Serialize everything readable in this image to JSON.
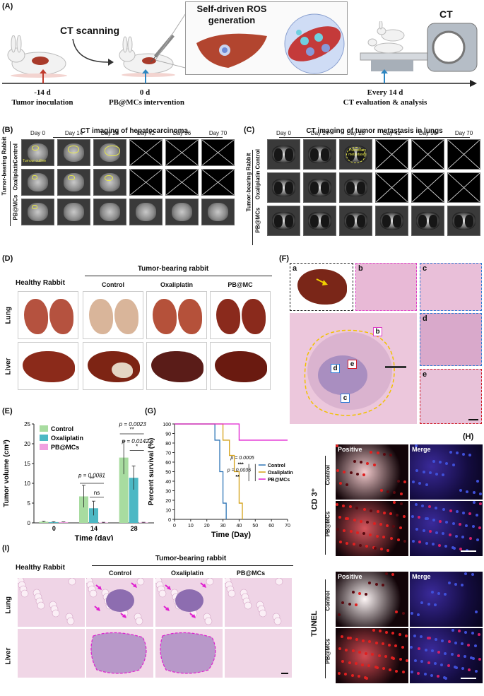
{
  "panel_labels": {
    "A": "(A)",
    "B": "(B)",
    "C": "(C)",
    "D": "(D)",
    "E": "(E)",
    "F": "(F)",
    "G": "(G)",
    "H": "(H)",
    "I": "(I)"
  },
  "panelA": {
    "ct_scanning": "CT scanning",
    "ros_title_1": "Self-driven ROS",
    "ros_title_2": "generation",
    "ct_label": "CT",
    "t1_day": "-14 d",
    "t1_event": "Tumor inoculation",
    "t2_day": "0 d",
    "t2_event": "PB@MCs intervention",
    "t3_day": "Every 14 d",
    "t3_event": "CT evaluation & analysis",
    "colors": {
      "red_arrow": "#c0392b",
      "blue_arrow": "#2e86c1"
    }
  },
  "panelB": {
    "title": "CT imaging of hepatocarcinoma",
    "days": [
      "Day 0",
      "Day 14",
      "Day 28",
      "Day 42",
      "Day 56",
      "Day 70"
    ],
    "group_label": "Tumor-bearing Rabbit",
    "rows": [
      "Control",
      "Oxaliplatin",
      "PB@MCs"
    ],
    "annotation": "Tumour outline"
  },
  "panelC": {
    "title": "CT imaging of tumor metastasis in lungs",
    "days": [
      "Day 0",
      "Day 14",
      "Day 28",
      "Day 42",
      "Day 56",
      "Day 70"
    ],
    "group_label": "Tumor-bearing Rabbit",
    "rows": [
      "Control",
      "Oxaliplatin",
      "PB@MCs"
    ],
    "annotation": "Pulmonary metastases"
  },
  "panelD": {
    "healthy": "Healthy Rabbit",
    "tumor": "Tumor-bearing rabbit",
    "groups": [
      "Control",
      "Oxaliplatin",
      "PB@MC"
    ],
    "rows": [
      "Lung",
      "Liver"
    ]
  },
  "panelF": {
    "subs": [
      "a",
      "b",
      "c",
      "d",
      "e"
    ],
    "colors": {
      "a": "#222222",
      "b": "#e040c8",
      "c": "#2e7bd6",
      "d": "#2e7bd6",
      "e": "#d0202a",
      "outline": "#f2c100"
    }
  },
  "panelE": {
    "chart_data": {
      "type": "bar",
      "title": "",
      "xlabel": "Time (day)",
      "ylabel": "Tumor volume (cm³)",
      "categories": [
        "0",
        "14",
        "28"
      ],
      "ylim": [
        0,
        25
      ],
      "yticks": [
        0,
        5,
        10,
        15,
        20,
        25
      ],
      "series": [
        {
          "name": "Control",
          "color": "#a8dca0",
          "values": [
            0.3,
            6.7,
            16.5
          ],
          "errors": [
            0.1,
            2.8,
            4.2
          ]
        },
        {
          "name": "Oxaliplatin",
          "color": "#4cb8c4",
          "values": [
            0.2,
            3.7,
            11.4
          ],
          "errors": [
            0.1,
            1.8,
            3.0
          ]
        },
        {
          "name": "PB@MCs",
          "color": "#f0a0e0",
          "values": [
            0.2,
            0.1,
            0.1
          ],
          "errors": [
            0.05,
            0.05,
            0.05
          ]
        }
      ],
      "annotations": [
        {
          "text": "p = 0.0081",
          "group": "14"
        },
        {
          "text": "**",
          "group": "14"
        },
        {
          "text": "ns",
          "group": "14"
        },
        {
          "text": "p = 0.0023",
          "group": "28"
        },
        {
          "text": "**",
          "group": "28"
        },
        {
          "text": "p = 0.0142",
          "group": "28"
        },
        {
          "text": "*",
          "group": "28"
        }
      ]
    }
  },
  "panelG": {
    "chart_data": {
      "type": "line",
      "title": "",
      "xlabel": "Time (Day)",
      "ylabel": "Percent survival (%)",
      "xlim": [
        0,
        70
      ],
      "ylim": [
        0,
        100
      ],
      "xticks": [
        0,
        10,
        20,
        30,
        40,
        50,
        60,
        70
      ],
      "yticks": [
        0,
        10,
        20,
        30,
        40,
        50,
        60,
        70,
        80,
        90,
        100
      ],
      "series": [
        {
          "name": "Control",
          "color": "#2e75b6",
          "steps": [
            [
              0,
              100
            ],
            [
              25,
              100
            ],
            [
              25,
              83
            ],
            [
              28,
              83
            ],
            [
              28,
              50
            ],
            [
              30,
              50
            ],
            [
              30,
              17
            ],
            [
              32,
              17
            ],
            [
              32,
              0
            ]
          ]
        },
        {
          "name": "Oxaliplatin",
          "color": "#d4a017",
          "steps": [
            [
              0,
              100
            ],
            [
              30,
              100
            ],
            [
              30,
              83
            ],
            [
              34,
              83
            ],
            [
              34,
              67
            ],
            [
              37,
              67
            ],
            [
              37,
              50
            ],
            [
              40,
              50
            ],
            [
              40,
              17
            ],
            [
              42,
              17
            ],
            [
              42,
              0
            ]
          ]
        },
        {
          "name": "PB@MCs",
          "color": "#e020d0",
          "steps": [
            [
              0,
              100
            ],
            [
              40,
              100
            ],
            [
              40,
              83
            ],
            [
              70,
              83
            ]
          ]
        }
      ],
      "annotations": [
        "p = 0.0005",
        "***",
        "p = 0.0036",
        "**"
      ]
    }
  },
  "panelH": {
    "cols": [
      "Positive",
      "Merge"
    ],
    "markers": [
      "CD 3⁺",
      "TUNEL"
    ],
    "rows": [
      "Control",
      "PB@MCs"
    ]
  },
  "panelI": {
    "healthy": "Healthy Rabbit",
    "tumor": "Tumor-bearing rabbit",
    "groups": [
      "Control",
      "Oxaliplatin",
      "PB@MCs"
    ],
    "rows": [
      "Lung",
      "Liver"
    ]
  }
}
